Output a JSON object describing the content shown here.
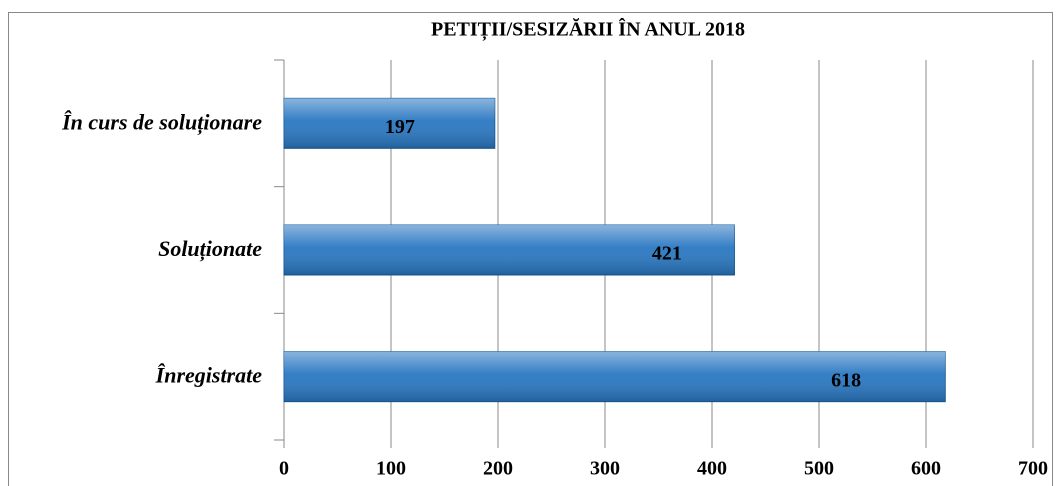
{
  "chart_data": {
    "type": "bar",
    "orientation": "horizontal",
    "title": "PETIȚII/SESIZĂRII ÎN ANUL 2018",
    "categories": [
      "În curs de soluționare",
      "Soluționate",
      "Înregistrate"
    ],
    "values": [
      197,
      421,
      618
    ],
    "color": "#2a78c2",
    "xlim": [
      0,
      700
    ],
    "xticks": [
      0,
      100,
      200,
      300,
      400,
      500,
      600,
      700
    ],
    "grid": true
  }
}
